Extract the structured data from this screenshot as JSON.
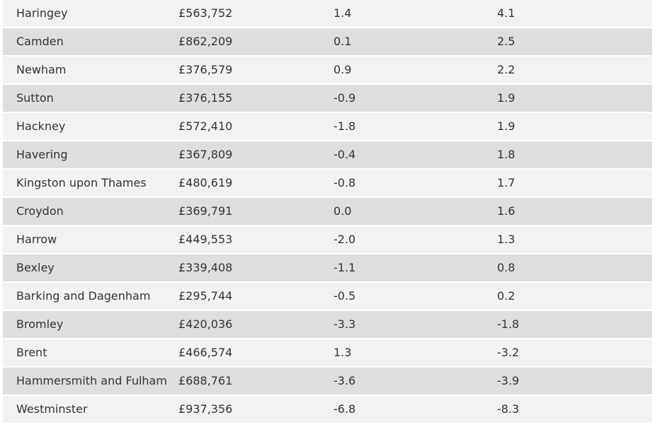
{
  "table": {
    "rows": [
      {
        "borough": "Haringey",
        "price": "£563,752",
        "change_a": "1.4",
        "change_b": "4.1"
      },
      {
        "borough": "Camden",
        "price": "£862,209",
        "change_a": "0.1",
        "change_b": "2.5"
      },
      {
        "borough": "Newham",
        "price": "£376,579",
        "change_a": "0.9",
        "change_b": "2.2"
      },
      {
        "borough": "Sutton",
        "price": "£376,155",
        "change_a": "-0.9",
        "change_b": "1.9"
      },
      {
        "borough": "Hackney",
        "price": "£572,410",
        "change_a": "-1.8",
        "change_b": "1.9"
      },
      {
        "borough": "Havering",
        "price": "£367,809",
        "change_a": "-0.4",
        "change_b": "1.8"
      },
      {
        "borough": "Kingston upon Thames",
        "price": "£480,619",
        "change_a": "-0.8",
        "change_b": "1.7"
      },
      {
        "borough": "Croydon",
        "price": "£369,791",
        "change_a": "0.0",
        "change_b": "1.6"
      },
      {
        "borough": "Harrow",
        "price": "£449,553",
        "change_a": "-2.0",
        "change_b": "1.3"
      },
      {
        "borough": "Bexley",
        "price": "£339,408",
        "change_a": "-1.1",
        "change_b": "0.8"
      },
      {
        "borough": "Barking and Dagenham",
        "price": "£295,744",
        "change_a": "-0.5",
        "change_b": "0.2"
      },
      {
        "borough": "Bromley",
        "price": "£420,036",
        "change_a": "-3.3",
        "change_b": "-1.8"
      },
      {
        "borough": "Brent",
        "price": "£466,574",
        "change_a": "1.3",
        "change_b": "-3.2"
      },
      {
        "borough": "Hammersmith and Fulham",
        "price": "£688,761",
        "change_a": "-3.6",
        "change_b": "-3.9"
      },
      {
        "borough": "Westminster",
        "price": "£937,356",
        "change_a": "-6.8",
        "change_b": "-8.3"
      }
    ]
  }
}
